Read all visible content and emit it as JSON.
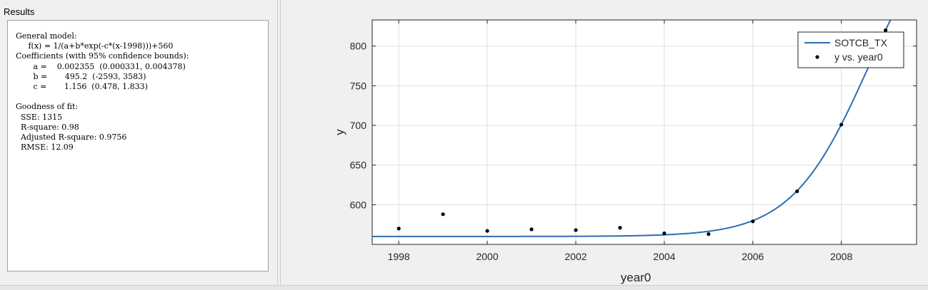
{
  "results": {
    "title": "Results",
    "lines": [
      "General model:",
      "     f(x) = 1/(a+b*exp(-c*(x-1998)))+560",
      "Coefficients (with 95% confidence bounds):",
      "       a =    0.002355  (0.000331, 0.004378)",
      "       b =       495.2  (-2593, 3583)",
      "       c =       1.156  (0.478, 1.833)",
      "",
      "Goodness of fit:",
      "  SSE: 1315",
      "  R-square: 0.98",
      "  Adjusted R-square: 0.9756",
      "  RMSE: 12.09"
    ]
  },
  "chart_data": {
    "type": "scatter",
    "xlabel": "year0",
    "ylabel": "y",
    "xlim": [
      1997.4,
      2009.7
    ],
    "ylim": [
      550,
      833
    ],
    "xticks": [
      1998,
      2000,
      2002,
      2004,
      2006,
      2008
    ],
    "yticks": [
      600,
      650,
      700,
      750,
      800
    ],
    "grid": true,
    "legend_position": "top-right",
    "series": [
      {
        "name": "y vs. year0",
        "kind": "points",
        "color": "#000000",
        "x": [
          1998,
          1999,
          2000,
          2001,
          2002,
          2003,
          2004,
          2005,
          2006,
          2007,
          2008,
          2009
        ],
        "y": [
          570,
          588,
          567,
          569,
          568,
          571,
          564,
          563,
          579,
          617,
          701,
          820
        ]
      },
      {
        "name": "SOTCB_TX",
        "kind": "fit",
        "color": "#2d6db5",
        "model": {
          "a": 0.002355,
          "b": 495.2,
          "c": 1.156,
          "x0": 1998,
          "offset": 560
        }
      }
    ]
  }
}
